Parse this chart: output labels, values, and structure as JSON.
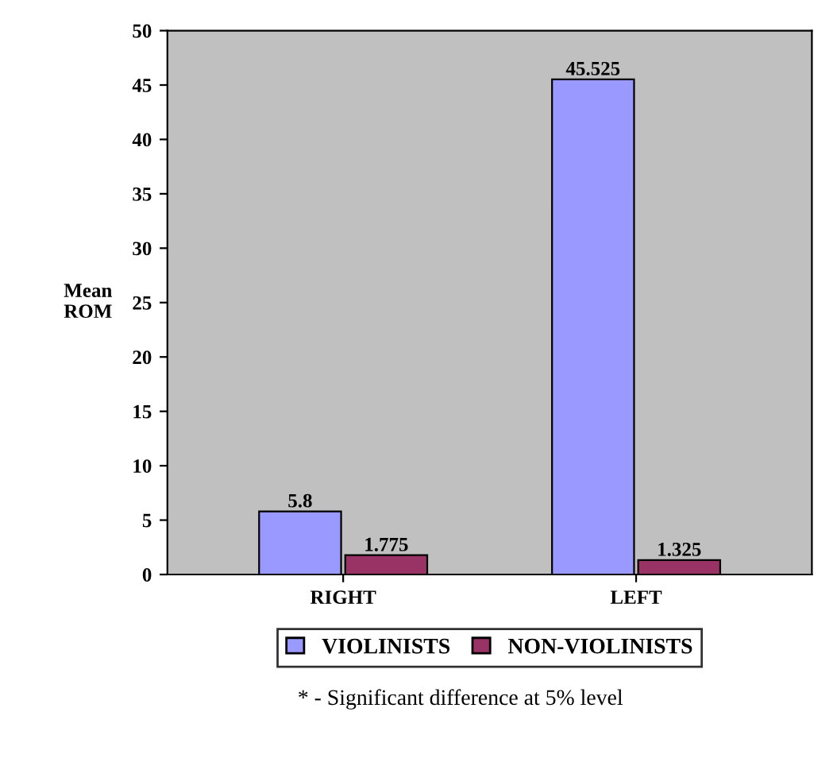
{
  "chart_data": {
    "type": "bar",
    "ylabel": "Mean\nROM",
    "categories": [
      "RIGHT",
      "LEFT"
    ],
    "series": [
      {
        "name": "VIOLINISTS",
        "color": "#9999ff",
        "values": [
          5.8,
          45.525
        ]
      },
      {
        "name": "NON-VIOLINISTS",
        "color": "#993366",
        "values": [
          1.775,
          1.325
        ]
      }
    ],
    "ylim": [
      0,
      50
    ],
    "yticks": [
      0,
      5,
      10,
      15,
      20,
      25,
      30,
      35,
      40,
      45,
      50
    ],
    "data_labels": true,
    "grid": false,
    "legend": "bottom",
    "annotations": [
      "* - Significant difference at 5% level"
    ]
  }
}
